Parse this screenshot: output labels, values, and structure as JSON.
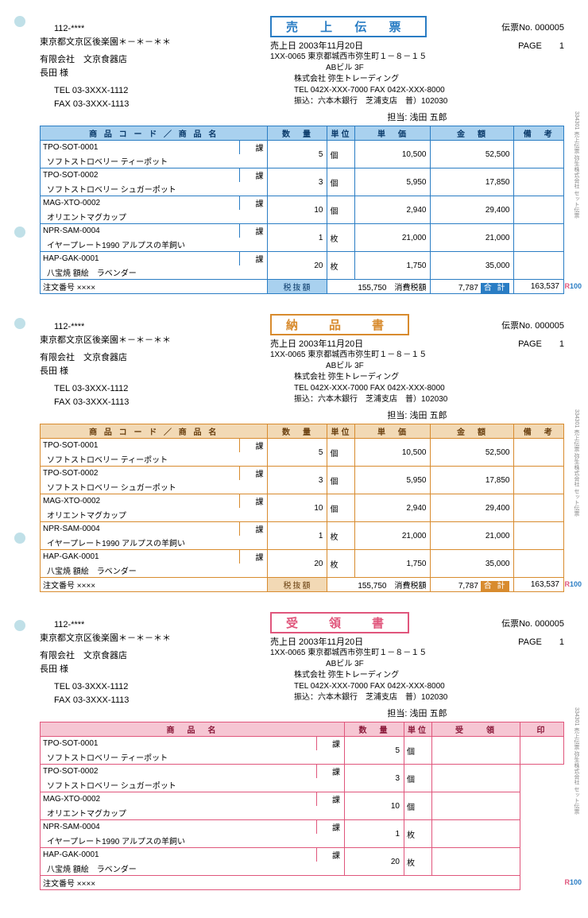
{
  "common": {
    "postcode": "112-****",
    "custAddr": "東京都文京区後楽園＊－＊－＊＊",
    "company": "有限会社　文京食器店",
    "attn": "長田 様",
    "tel": "TEL 03-3XXX-1112",
    "fax": "FAX 03-3XXX-1113",
    "voucherLbl": "伝票No.",
    "voucherNo": "000005",
    "dateLbl": "売上日",
    "date": "2003年11月20日",
    "pageLbl": "PAGE",
    "pageNo": "1",
    "addr1": "1XX-0065 東京都城西市弥生町１－８－１５",
    "addr2": "ABビル 3F",
    "addr3": "株式会社 弥生トレーディング",
    "addr4": "TEL 042X-XXX-7000 FAX 042X-XXX-8000",
    "addr5": "振込：六本木銀行　芝浦支店　普）102030",
    "personLbl": "担当:",
    "person": "浅田 五郎",
    "orderLbl": "注文番号",
    "orderNo": "××××",
    "taxExLbl": "税抜額",
    "taxEx": "155,750",
    "taxLbl": "消費税額",
    "tax": "7,787",
    "sumLbl": "合 計",
    "sum": "163,537"
  },
  "cols": {
    "code": "商 品 コ ー ド ／ 商 品 名",
    "name": "商　品　名",
    "qty": "数　量",
    "unit": "単位",
    "price": "単　価",
    "amount": "金　額",
    "note": "備　考",
    "recv": "受　　領",
    "seal": "印"
  },
  "rows": [
    {
      "code": "TPO-SOT-0001",
      "taxc": "課",
      "name": "ソフトストロベリー ティーポット",
      "qty": "5",
      "unit": "個",
      "price": "10,500",
      "amount": "52,500"
    },
    {
      "code": "TPO-SOT-0002",
      "taxc": "課",
      "name": "ソフトストロベリー シュガーポット",
      "qty": "3",
      "unit": "個",
      "price": "5,950",
      "amount": "17,850"
    },
    {
      "code": "MAG-XTO-0002",
      "taxc": "課",
      "name": "オリエントマグカップ",
      "qty": "10",
      "unit": "個",
      "price": "2,940",
      "amount": "29,400"
    },
    {
      "code": "NPR-SAM-0004",
      "taxc": "課",
      "name": "イヤープレート1990 アルプスの羊飼い",
      "qty": "1",
      "unit": "枚",
      "price": "21,000",
      "amount": "21,000"
    },
    {
      "code": "HAP-GAK-0001",
      "taxc": "課",
      "name": "八宝焼 額絵　ラベンダー",
      "qty": "20",
      "unit": "枚",
      "price": "1,750",
      "amount": "35,000"
    }
  ],
  "slips": [
    {
      "title": "売 上 伝 票",
      "cls": "blue",
      "full": true,
      "totals": true,
      "side": "334301 売上伝票 弥生株式会社 セット伝票"
    },
    {
      "title": "納　品　書",
      "cls": "orange",
      "full": true,
      "totals": true,
      "side": "334301 売上伝票 弥生株式会社 セット伝票"
    },
    {
      "title": "受　領　書",
      "cls": "red",
      "full": false,
      "totals": false,
      "side": "334301 売上伝票 弥生株式会社 セット伝票"
    }
  ],
  "r100": "R100"
}
